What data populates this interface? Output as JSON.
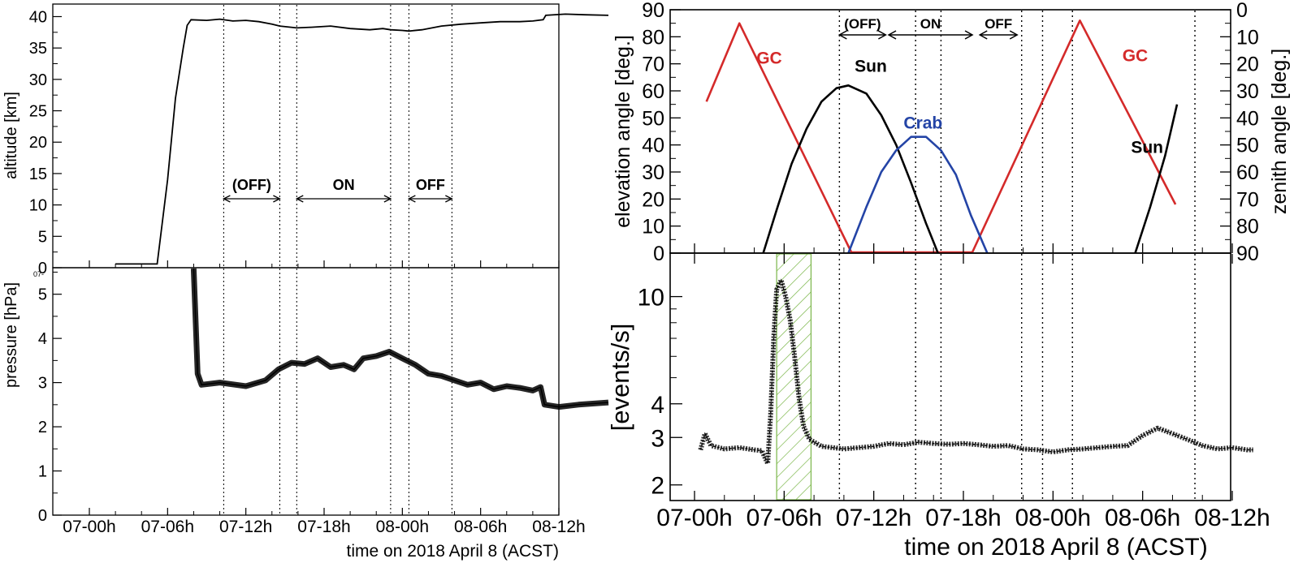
{
  "colors": {
    "gc": "#d42a2a",
    "sun": "#000000",
    "crab": "#2444a6",
    "shade": "#7ab648",
    "axis": "#000000"
  },
  "left": {
    "xlabel": "time on 2018 April 8 (ACST)",
    "x_ticks": [
      "07-00h",
      "07-06h",
      "07-12h",
      "07-18h",
      "08-00h",
      "08-06h",
      "08-12h"
    ],
    "vlines_h": [
      10.3,
      14.6,
      15.9,
      23.1,
      24.5,
      27.8
    ],
    "periods": [
      {
        "label": "(OFF)",
        "from": 10.3,
        "to": 14.6
      },
      {
        "label": "ON",
        "from": 15.9,
        "to": 23.1
      },
      {
        "label": "OFF",
        "from": 24.5,
        "to": 27.8
      }
    ],
    "altitude": {
      "ylabel": "altitude [km]",
      "ylim": [
        0,
        42
      ],
      "y_ticks": [
        "0",
        "5",
        "10",
        "15",
        "20",
        "25",
        "30",
        "35",
        "40"
      ],
      "series": [
        [
          2.0,
          0.6
        ],
        [
          5.2,
          0.6
        ],
        [
          6.0,
          14
        ],
        [
          6.6,
          27
        ],
        [
          7.2,
          35
        ],
        [
          7.5,
          38.6
        ],
        [
          7.8,
          39.5
        ],
        [
          9,
          39.4
        ],
        [
          10,
          39.6
        ],
        [
          11,
          39.3
        ],
        [
          12,
          39.4
        ],
        [
          13,
          39.2
        ],
        [
          14,
          38.8
        ],
        [
          14.6,
          38.5
        ],
        [
          15.9,
          38.2
        ],
        [
          17,
          38.3
        ],
        [
          18.5,
          38.5
        ],
        [
          20,
          38.1
        ],
        [
          21.5,
          37.9
        ],
        [
          22.5,
          38.1
        ],
        [
          23.1,
          37.9
        ],
        [
          24,
          37.8
        ],
        [
          24.5,
          37.7
        ],
        [
          25.5,
          37.9
        ],
        [
          27,
          38.5
        ],
        [
          28.5,
          38.8
        ],
        [
          30,
          39.0
        ],
        [
          31.5,
          39.2
        ],
        [
          33,
          39.2
        ],
        [
          34,
          39.3
        ],
        [
          34.8,
          39.5
        ],
        [
          35,
          40.2
        ],
        [
          36.5,
          40.4
        ],
        [
          38,
          40.3
        ],
        [
          39.8,
          40.2
        ]
      ]
    },
    "pressure": {
      "ylabel": "pressure [hPa]",
      "ylim": [
        0,
        5.6
      ],
      "y_ticks": [
        "0",
        "1",
        "2",
        "3",
        "4",
        "5"
      ],
      "corner_label": "07-",
      "series": [
        [
          8.0,
          5.6
        ],
        [
          8.3,
          3.2
        ],
        [
          8.6,
          2.95
        ],
        [
          10,
          3.0
        ],
        [
          12,
          2.92
        ],
        [
          13.5,
          3.05
        ],
        [
          14.5,
          3.3
        ],
        [
          15.5,
          3.45
        ],
        [
          16.5,
          3.42
        ],
        [
          17.5,
          3.55
        ],
        [
          18.5,
          3.35
        ],
        [
          19.5,
          3.4
        ],
        [
          20.3,
          3.3
        ],
        [
          21,
          3.55
        ],
        [
          22,
          3.6
        ],
        [
          23,
          3.7
        ],
        [
          24,
          3.55
        ],
        [
          25,
          3.4
        ],
        [
          26,
          3.2
        ],
        [
          27,
          3.15
        ],
        [
          28,
          3.05
        ],
        [
          29,
          2.95
        ],
        [
          30,
          3.0
        ],
        [
          31,
          2.85
        ],
        [
          32,
          2.92
        ],
        [
          33,
          2.88
        ],
        [
          34,
          2.82
        ],
        [
          34.6,
          2.9
        ],
        [
          34.9,
          2.5
        ],
        [
          36,
          2.45
        ],
        [
          37.5,
          2.5
        ],
        [
          39.8,
          2.55
        ]
      ]
    }
  },
  "right": {
    "xlabel": "time on 2018 April 8 (ACST)",
    "x_ticks": [
      "07-00h",
      "07-06h",
      "07-12h",
      "07-18h",
      "08-00h",
      "08-06h",
      "08-12h"
    ],
    "vlines_h": [
      9.7,
      14.8,
      16.5,
      21.9,
      23.3,
      25.3,
      33.5
    ],
    "periods": [
      {
        "label": "(OFF)",
        "from": 9.7,
        "to": 12.8
      },
      {
        "label": "ON",
        "from": 13.0,
        "to": 18.6
      },
      {
        "label": "OFF",
        "from": 19.1,
        "to": 21.6
      }
    ],
    "elevation": {
      "ylabel": "elevation angle [deg.]",
      "ylabel_right": "zenith angle [deg.]",
      "ylim": [
        0,
        90
      ],
      "y_ticks": [
        "0",
        "10",
        "20",
        "30",
        "40",
        "50",
        "60",
        "70",
        "80",
        "90"
      ],
      "y_ticks_right": [
        "90",
        "80",
        "70",
        "60",
        "50",
        "40",
        "30",
        "20",
        "10",
        "0"
      ],
      "series": [
        {
          "name": "GC",
          "color_key": "gc",
          "points": [
            [
              0.8,
              56
            ],
            [
              3.0,
              85
            ],
            [
              10.5,
              0.3
            ],
            [
              18.6,
              0.3
            ],
            [
              25.8,
              86
            ],
            [
              32.2,
              18
            ]
          ]
        },
        {
          "name": "Sun",
          "color_key": "sun",
          "points": [
            [
              4.6,
              0
            ],
            [
              5.5,
              16
            ],
            [
              6.5,
              33
            ],
            [
              7.5,
              46
            ],
            [
              8.5,
              56
            ],
            [
              9.5,
              61
            ],
            [
              10.3,
              62
            ],
            [
              11.5,
              59
            ],
            [
              12.5,
              51
            ],
            [
              13.5,
              40
            ],
            [
              14.5,
              26
            ],
            [
              15.5,
              11
            ],
            [
              16.3,
              0
            ]
          ],
          "points2": [
            [
              29.5,
              0
            ],
            [
              30.5,
              17
            ],
            [
              31.5,
              36
            ],
            [
              32.3,
              55
            ]
          ]
        },
        {
          "name": "Crab",
          "color_key": "crab",
          "points": [
            [
              10.3,
              0
            ],
            [
              11.5,
              17
            ],
            [
              12.5,
              30
            ],
            [
              13.5,
              38
            ],
            [
              14.5,
              43
            ],
            [
              15.5,
              43
            ],
            [
              16.5,
              38
            ],
            [
              17.5,
              29
            ],
            [
              18.5,
              14
            ],
            [
              19.6,
              0
            ]
          ]
        }
      ],
      "labels": [
        {
          "text": "GC",
          "x": 5.0,
          "y": 70,
          "color_key": "gc"
        },
        {
          "text": "Sun",
          "x": 11.8,
          "y": 67,
          "color_key": "sun"
        },
        {
          "text": "Crab",
          "x": 15.3,
          "y": 46,
          "color_key": "crab"
        },
        {
          "text": "GC",
          "x": 29.5,
          "y": 71,
          "color_key": "gc"
        },
        {
          "text": "Sun",
          "x": 30.3,
          "y": 37,
          "color_key": "sun"
        }
      ]
    },
    "rate": {
      "ylabel": "[events/s]",
      "scale": "log",
      "ylim": [
        1.75,
        14.5
      ],
      "y_ticks": [
        "2",
        "3",
        "4",
        "10"
      ],
      "shade_h": [
        5.5,
        7.8
      ],
      "series": [
        [
          0.4,
          2.7
        ],
        [
          0.7,
          3.1
        ],
        [
          1.1,
          2.8
        ],
        [
          2,
          2.72
        ],
        [
          3,
          2.75
        ],
        [
          4,
          2.7
        ],
        [
          4.5,
          2.68
        ],
        [
          4.9,
          2.4
        ],
        [
          5.1,
          3.7
        ],
        [
          5.3,
          7.0
        ],
        [
          5.5,
          10.6
        ],
        [
          5.8,
          11.5
        ],
        [
          6.1,
          10.0
        ],
        [
          6.4,
          8.2
        ],
        [
          6.7,
          6.0
        ],
        [
          7.0,
          4.2
        ],
        [
          7.3,
          3.3
        ],
        [
          7.7,
          2.95
        ],
        [
          8.5,
          2.78
        ],
        [
          10,
          2.72
        ],
        [
          11,
          2.75
        ],
        [
          12,
          2.78
        ],
        [
          13,
          2.85
        ],
        [
          14,
          2.82
        ],
        [
          15,
          2.88
        ],
        [
          16,
          2.85
        ],
        [
          17,
          2.83
        ],
        [
          18,
          2.85
        ],
        [
          19,
          2.82
        ],
        [
          20,
          2.78
        ],
        [
          21,
          2.8
        ],
        [
          22,
          2.72
        ],
        [
          23,
          2.7
        ],
        [
          24,
          2.65
        ],
        [
          25,
          2.7
        ],
        [
          26,
          2.72
        ],
        [
          27,
          2.75
        ],
        [
          28,
          2.78
        ],
        [
          29,
          2.8
        ],
        [
          30,
          3.05
        ],
        [
          31,
          3.25
        ],
        [
          32,
          3.1
        ],
        [
          33,
          2.95
        ],
        [
          34,
          2.8
        ],
        [
          35,
          2.72
        ],
        [
          36,
          2.75
        ],
        [
          37,
          2.7
        ],
        [
          37.4,
          2.7
        ]
      ]
    }
  }
}
